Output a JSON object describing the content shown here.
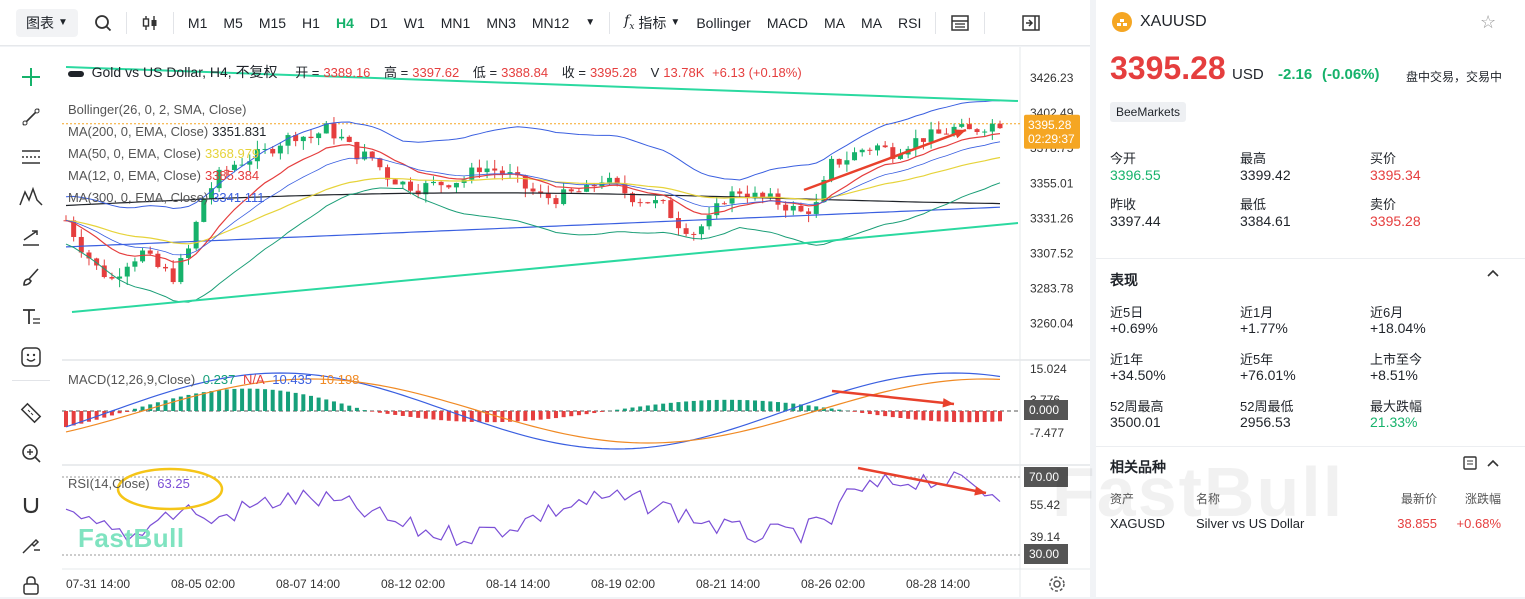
{
  "toolbar": {
    "chart_menu": "图表",
    "timeframes": [
      {
        "label": "M1",
        "active": false
      },
      {
        "label": "M5",
        "active": false
      },
      {
        "label": "M15",
        "active": false
      },
      {
        "label": "H1",
        "active": false
      },
      {
        "label": "H4",
        "active": true
      },
      {
        "label": "D1",
        "active": false
      },
      {
        "label": "W1",
        "active": false
      },
      {
        "label": "MN1",
        "active": false
      },
      {
        "label": "MN3",
        "active": false
      },
      {
        "label": "MN12",
        "active": false
      }
    ],
    "indicators_label": "指标",
    "indicators": [
      "Bollinger",
      "MACD",
      "MA",
      "MA",
      "RSI"
    ]
  },
  "legend": {
    "title": "Gold vs US Dollar, H4, 不复权",
    "open_label": "开 =",
    "open": "3389.16",
    "high_label": "高 =",
    "high": "3397.62",
    "low_label": "低 =",
    "low": "3388.84",
    "close_label": "收 =",
    "close": "3395.28",
    "volume_label": "V",
    "volume": "13.78K",
    "change": "+6.13 (+0.18%)",
    "bollinger": "Bollinger(26, 0, 2, SMA, Close)",
    "ma200": "MA(200, 0, EMA, Close)",
    "ma200_val": "3351.831",
    "ma50": "MA(50, 0, EMA, Close)",
    "ma50_val": "3368.979",
    "ma12": "MA(12, 0, EMA, Close)",
    "ma12_val": "3385.384",
    "ma300": "MA(300, 0, EMA, Close)",
    "ma300_val": "3341.111",
    "macd": "MACD(12,26,9,Close)",
    "macd_hist": "0.237",
    "macd_na": "N/A",
    "macd_line": "10.435",
    "macd_signal": "10.198",
    "rsi": "RSI(14,Close)",
    "rsi_val": "63.25"
  },
  "price_axis": [
    "3426.23",
    "3402.49",
    "3378.75",
    "3355.01",
    "3331.26",
    "3307.52",
    "3283.78",
    "3260.04"
  ],
  "price_tag": {
    "price": "3395.28",
    "countdown": "02:29:37"
  },
  "macd_axis": [
    "15.024",
    "3.776",
    "-7.477"
  ],
  "macd_tag": "0.000",
  "rsi_axis": [
    "55.42",
    "39.14"
  ],
  "rsi_tags": [
    "70.00",
    "30.00"
  ],
  "time_axis": [
    "07-31 14:00",
    "08-05 02:00",
    "08-07 14:00",
    "08-12 02:00",
    "08-14 14:00",
    "08-19 02:00",
    "08-21 14:00",
    "08-26 02:00",
    "08-28 14:00"
  ],
  "watermark": "FastBull",
  "colors": {
    "up": "#16b26b",
    "down": "#e53e3e",
    "accent": "#16b26b",
    "trend": "#2bd9a0",
    "arrow": "#e8412c",
    "tag": "#f5a623"
  },
  "quote": {
    "symbol": "XAUUSD",
    "price": "3395.28",
    "currency": "USD",
    "change": "-2.16",
    "change_pct": "(-0.06%)",
    "status": "盘中交易，交易中",
    "broker": "BeeMarkets",
    "stats": [
      {
        "label": "今开",
        "value": "3396.55",
        "color": "green"
      },
      {
        "label": "最高",
        "value": "3399.42",
        "color": ""
      },
      {
        "label": "买价",
        "value": "3395.34",
        "color": "red"
      },
      {
        "label": "昨收",
        "value": "3397.44",
        "color": ""
      },
      {
        "label": "最低",
        "value": "3384.61",
        "color": ""
      },
      {
        "label": "卖价",
        "value": "3395.28",
        "color": "red"
      }
    ],
    "performance_title": "表现",
    "performance": [
      {
        "label": "近5日",
        "value": "+0.69%"
      },
      {
        "label": "近1月",
        "value": "+1.77%"
      },
      {
        "label": "近6月",
        "value": "+18.04%"
      },
      {
        "label": "近1年",
        "value": "+34.50%"
      },
      {
        "label": "近5年",
        "value": "+76.01%"
      },
      {
        "label": "上市至今",
        "value": "+8.51%"
      },
      {
        "label": "52周最高",
        "value": "3500.01"
      },
      {
        "label": "52周最低",
        "value": "2956.53"
      },
      {
        "label": "最大跌幅",
        "value": "21.33%",
        "color": "green"
      }
    ],
    "related_title": "相关品种",
    "related_headers": [
      "资产",
      "名称",
      "最新价",
      "涨跌幅"
    ],
    "related_rows": [
      {
        "asset": "XAGUSD",
        "name": "Silver vs US Dollar",
        "price": "38.855",
        "change": "+0.68%"
      }
    ]
  }
}
